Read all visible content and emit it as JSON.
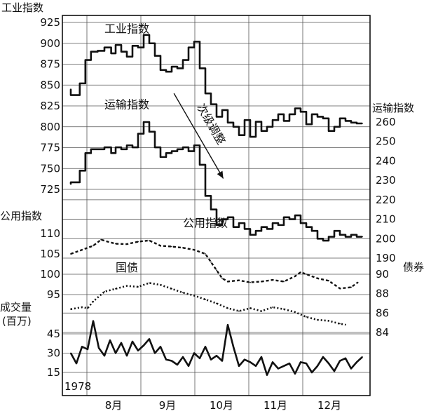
{
  "chart_data": {
    "type": "line",
    "year_label": "1978",
    "grid": true,
    "x": {
      "categories": [
        "8月",
        "9月",
        "10月",
        "11月",
        "12月"
      ],
      "range": [
        0,
        26
      ],
      "note": "weekly readings, Jul-Dec 1978"
    },
    "axes": {
      "industrial": {
        "title": "工业指数",
        "side": "left",
        "ticks": [
          "925",
          "900",
          "875",
          "850",
          "825",
          "800",
          "775",
          "750",
          "725"
        ],
        "ylim": [
          725,
          925
        ]
      },
      "utility": {
        "title": "公用指数",
        "side": "left",
        "ticks": [
          "110",
          "105",
          "100",
          "95"
        ],
        "ylim": [
          95,
          110
        ]
      },
      "volume": {
        "title_line1": "成交量",
        "title_line2": "(百万)",
        "side": "left",
        "ticks": [
          "45",
          "30",
          "15"
        ],
        "ylim": [
          15,
          45
        ]
      },
      "transport": {
        "title": "运输指数",
        "side": "right",
        "ticks": [
          "260",
          "250",
          "240",
          "230",
          "220",
          "210",
          "200",
          "190"
        ],
        "ylim": [
          190,
          260
        ]
      },
      "bond": {
        "title": "债券",
        "side": "right",
        "ticks": [
          "90",
          "88",
          "86",
          "84"
        ],
        "ylim": [
          84,
          90
        ]
      }
    },
    "annotation": {
      "text": "次级调整",
      "from": [
        9.2,
        840
      ],
      "to": [
        13.6,
        738
      ],
      "axis": "industrial"
    },
    "series": [
      {
        "name": "工业指数",
        "axis": "industrial",
        "style": "solid",
        "label_at": [
          3.0,
          913
        ],
        "x": [
          0,
          0.8,
          1.3,
          1.8,
          2.4,
          3,
          3.6,
          4,
          4.5,
          5,
          5.5,
          6,
          6.5,
          7,
          7.5,
          8,
          8.5,
          9,
          9.5,
          10,
          10.5,
          11,
          11.5,
          12,
          12.5,
          13,
          13.5,
          14,
          14.5,
          15,
          15.5,
          16,
          16.5,
          17,
          17.5,
          18,
          18.5,
          19,
          19.5,
          20,
          20.5,
          21,
          21.5,
          22,
          22.5,
          23,
          23.5,
          24,
          24.5,
          25,
          25.5,
          26
        ],
        "values": [
          845,
          838,
          852,
          880,
          890,
          891,
          895,
          888,
          898,
          890,
          884,
          897,
          895,
          910,
          900,
          885,
          868,
          866,
          872,
          870,
          880,
          895,
          902,
          870,
          840,
          827,
          812,
          820,
          805,
          800,
          790,
          808,
          788,
          806,
          795,
          800,
          808,
          815,
          807,
          815,
          822,
          818,
          803,
          815,
          812,
          810,
          795,
          800,
          810,
          807,
          805,
          804
        ]
      },
      {
        "name": "运输指数",
        "axis": "transport",
        "style": "solid",
        "label_at": [
          3.0,
          267
        ],
        "x": [
          0,
          0.8,
          1.3,
          1.8,
          2.4,
          3,
          3.6,
          4,
          4.5,
          5,
          5.5,
          6,
          6.5,
          7,
          7.5,
          8,
          8.5,
          9,
          9.5,
          10,
          10.5,
          11,
          11.5,
          12,
          12.5,
          13,
          13.5,
          14,
          14.5,
          15,
          15.5,
          16,
          16.5,
          17,
          17.5,
          18,
          18.5,
          19,
          19.5,
          20,
          20.5,
          21,
          21.5,
          22,
          22.5,
          23,
          23.5,
          24,
          24.5,
          25,
          25.5,
          26
        ],
        "values": [
          228,
          229,
          235,
          244,
          246,
          246,
          247,
          244,
          247,
          246,
          248,
          247,
          254,
          260,
          255,
          247,
          242,
          244,
          245,
          246,
          247,
          245,
          248,
          238,
          222,
          215,
          207,
          210,
          211,
          206,
          208,
          205,
          202,
          204,
          206,
          205,
          208,
          207,
          211,
          210,
          212,
          208,
          206,
          204,
          200,
          199,
          201,
          204,
          202,
          201,
          202,
          201
        ]
      },
      {
        "name": "公用指数",
        "axis": "utility",
        "style": "dashed",
        "label_at": [
          10.0,
          111.6
        ],
        "x": [
          0,
          1,
          2,
          2.7,
          3.3,
          4,
          5,
          6,
          7,
          8,
          9,
          10,
          11,
          12,
          12.5,
          13,
          13.5,
          14,
          15,
          16,
          17,
          18,
          19,
          20,
          20.5,
          21,
          22,
          23,
          24,
          25,
          25.6
        ],
        "values": [
          105,
          106,
          107,
          108.5,
          108,
          107.5,
          107.4,
          108,
          108.3,
          107,
          106.8,
          106.5,
          106,
          105,
          103,
          101,
          99,
          98.2,
          98.5,
          98,
          98.2,
          98.6,
          98.2,
          99.5,
          100.5,
          100,
          99,
          98.4,
          96.5,
          96.8,
          98
        ]
      },
      {
        "name": "国债",
        "axis": "bond",
        "style": "dotted",
        "label_at": [
          4.0,
          90.3
        ],
        "x": [
          0,
          1,
          1.5,
          2,
          3,
          4,
          5,
          6,
          7,
          8,
          9,
          10,
          11,
          12,
          13,
          14,
          15,
          16,
          17,
          18,
          19,
          20,
          21,
          22,
          23,
          24,
          24.5
        ],
        "values": [
          86.4,
          86.6,
          86.5,
          87.2,
          88.2,
          88.5,
          88.8,
          88.7,
          89.1,
          88.9,
          88.5,
          88.1,
          87.8,
          87.4,
          87,
          86.5,
          86.2,
          86.5,
          86.2,
          86.6,
          86.4,
          86.1,
          85.6,
          85.3,
          85.2,
          84.9,
          84.8
        ]
      },
      {
        "name": "成交量",
        "axis": "volume",
        "style": "solid",
        "x": [
          0,
          0.5,
          1,
          1.5,
          2,
          2.5,
          3,
          3.5,
          4,
          4.5,
          5,
          5.5,
          6,
          6.5,
          7,
          7.5,
          8,
          8.5,
          9,
          9.5,
          10,
          10.5,
          11,
          11.5,
          12,
          12.5,
          13,
          13.5,
          14,
          14.5,
          15,
          15.5,
          16,
          16.5,
          17,
          17.5,
          18,
          18.5,
          19,
          19.5,
          20,
          20.5,
          21,
          21.5,
          22,
          22.5,
          23,
          23.5,
          24,
          24.5,
          25,
          25.5,
          26
        ],
        "values": [
          30,
          22,
          35,
          33,
          55,
          34,
          28,
          40,
          30,
          38,
          28,
          39,
          32,
          36,
          41,
          30,
          35,
          25,
          24,
          21,
          27,
          20,
          30,
          26,
          35,
          25,
          28,
          24,
          52,
          35,
          20,
          25,
          23,
          20,
          27,
          13,
          23,
          18,
          20,
          22,
          14,
          23,
          22,
          15,
          20,
          27,
          22,
          16,
          24,
          26,
          18,
          23,
          27
        ]
      }
    ]
  }
}
